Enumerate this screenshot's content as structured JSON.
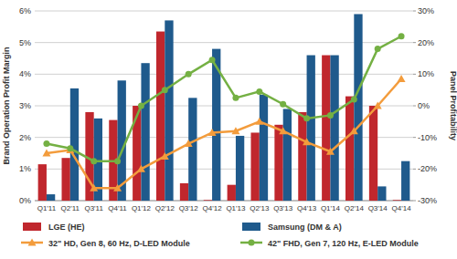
{
  "chart_data": {
    "type": "bar",
    "categories": [
      "Q1'11",
      "Q2'11",
      "Q3'11",
      "Q4'11",
      "Q1'12",
      "Q2'12",
      "Q3'12",
      "Q4'12",
      "Q1'13",
      "Q2'13",
      "Q3'13",
      "Q4'13",
      "Q1'14",
      "Q2'14",
      "Q3'14",
      "Q4'14"
    ],
    "y_label": "Brand Operation Profit Margin",
    "y2_label": "Panel Profitability",
    "ylim": [
      0,
      6
    ],
    "yticks": [
      {
        "value": 0,
        "label": "0%"
      },
      {
        "value": 1,
        "label": "1%"
      },
      {
        "value": 2,
        "label": "2%"
      },
      {
        "value": 3,
        "label": "3%"
      },
      {
        "value": 4,
        "label": "4%"
      },
      {
        "value": 5,
        "label": "5%"
      },
      {
        "value": 6,
        "label": "6%"
      }
    ],
    "y2lim": [
      -30,
      30
    ],
    "y2ticks": [
      {
        "value": -30,
        "label": "-30%"
      },
      {
        "value": -20,
        "label": "-20%"
      },
      {
        "value": -10,
        "label": "-10%"
      },
      {
        "value": 0,
        "label": "0%"
      },
      {
        "value": 10,
        "label": "10%"
      },
      {
        "value": 20,
        "label": "20%"
      },
      {
        "value": 30,
        "label": "30%"
      }
    ],
    "grid": true,
    "legend": "bottom",
    "series": [
      {
        "name": "LGE (HE)",
        "type": "bar",
        "color": "#c0272d",
        "values": [
          1.15,
          1.35,
          2.8,
          2.55,
          3.0,
          5.35,
          0.55,
          0.02,
          0.5,
          2.15,
          2.4,
          2.8,
          4.6,
          3.3,
          3.0,
          0.02
        ]
      },
      {
        "name": "Samsung (DM & A)",
        "type": "bar",
        "color": "#1f5a8c",
        "values": [
          0.2,
          3.55,
          2.6,
          3.8,
          4.35,
          5.7,
          3.25,
          4.8,
          2.05,
          3.35,
          2.9,
          4.6,
          4.6,
          5.9,
          0.45,
          1.25
        ]
      },
      {
        "name": "32\" HD, Gen 8, 60 Hz, D-LED Module",
        "type": "line",
        "axis": "y2",
        "color": "#f39c3c",
        "marker": "triangle",
        "line_style": "solid",
        "values": [
          -15,
          -14,
          -26,
          -26,
          -20,
          -16,
          -12,
          -8.5,
          -8,
          -5,
          -8,
          -11.5,
          -14.5,
          -8,
          0,
          8.5
        ]
      },
      {
        "name": "42\" FHD, Gen 7, 120 Hz, E-LED Module",
        "type": "line",
        "axis": "y2",
        "color": "#74b043",
        "marker": "circle",
        "line_style": "solid",
        "values": [
          -12,
          -13.5,
          -17.5,
          -17.5,
          0,
          5,
          10,
          14.5,
          2.5,
          4.5,
          0.5,
          -4,
          -3,
          2,
          18,
          22
        ]
      }
    ]
  }
}
